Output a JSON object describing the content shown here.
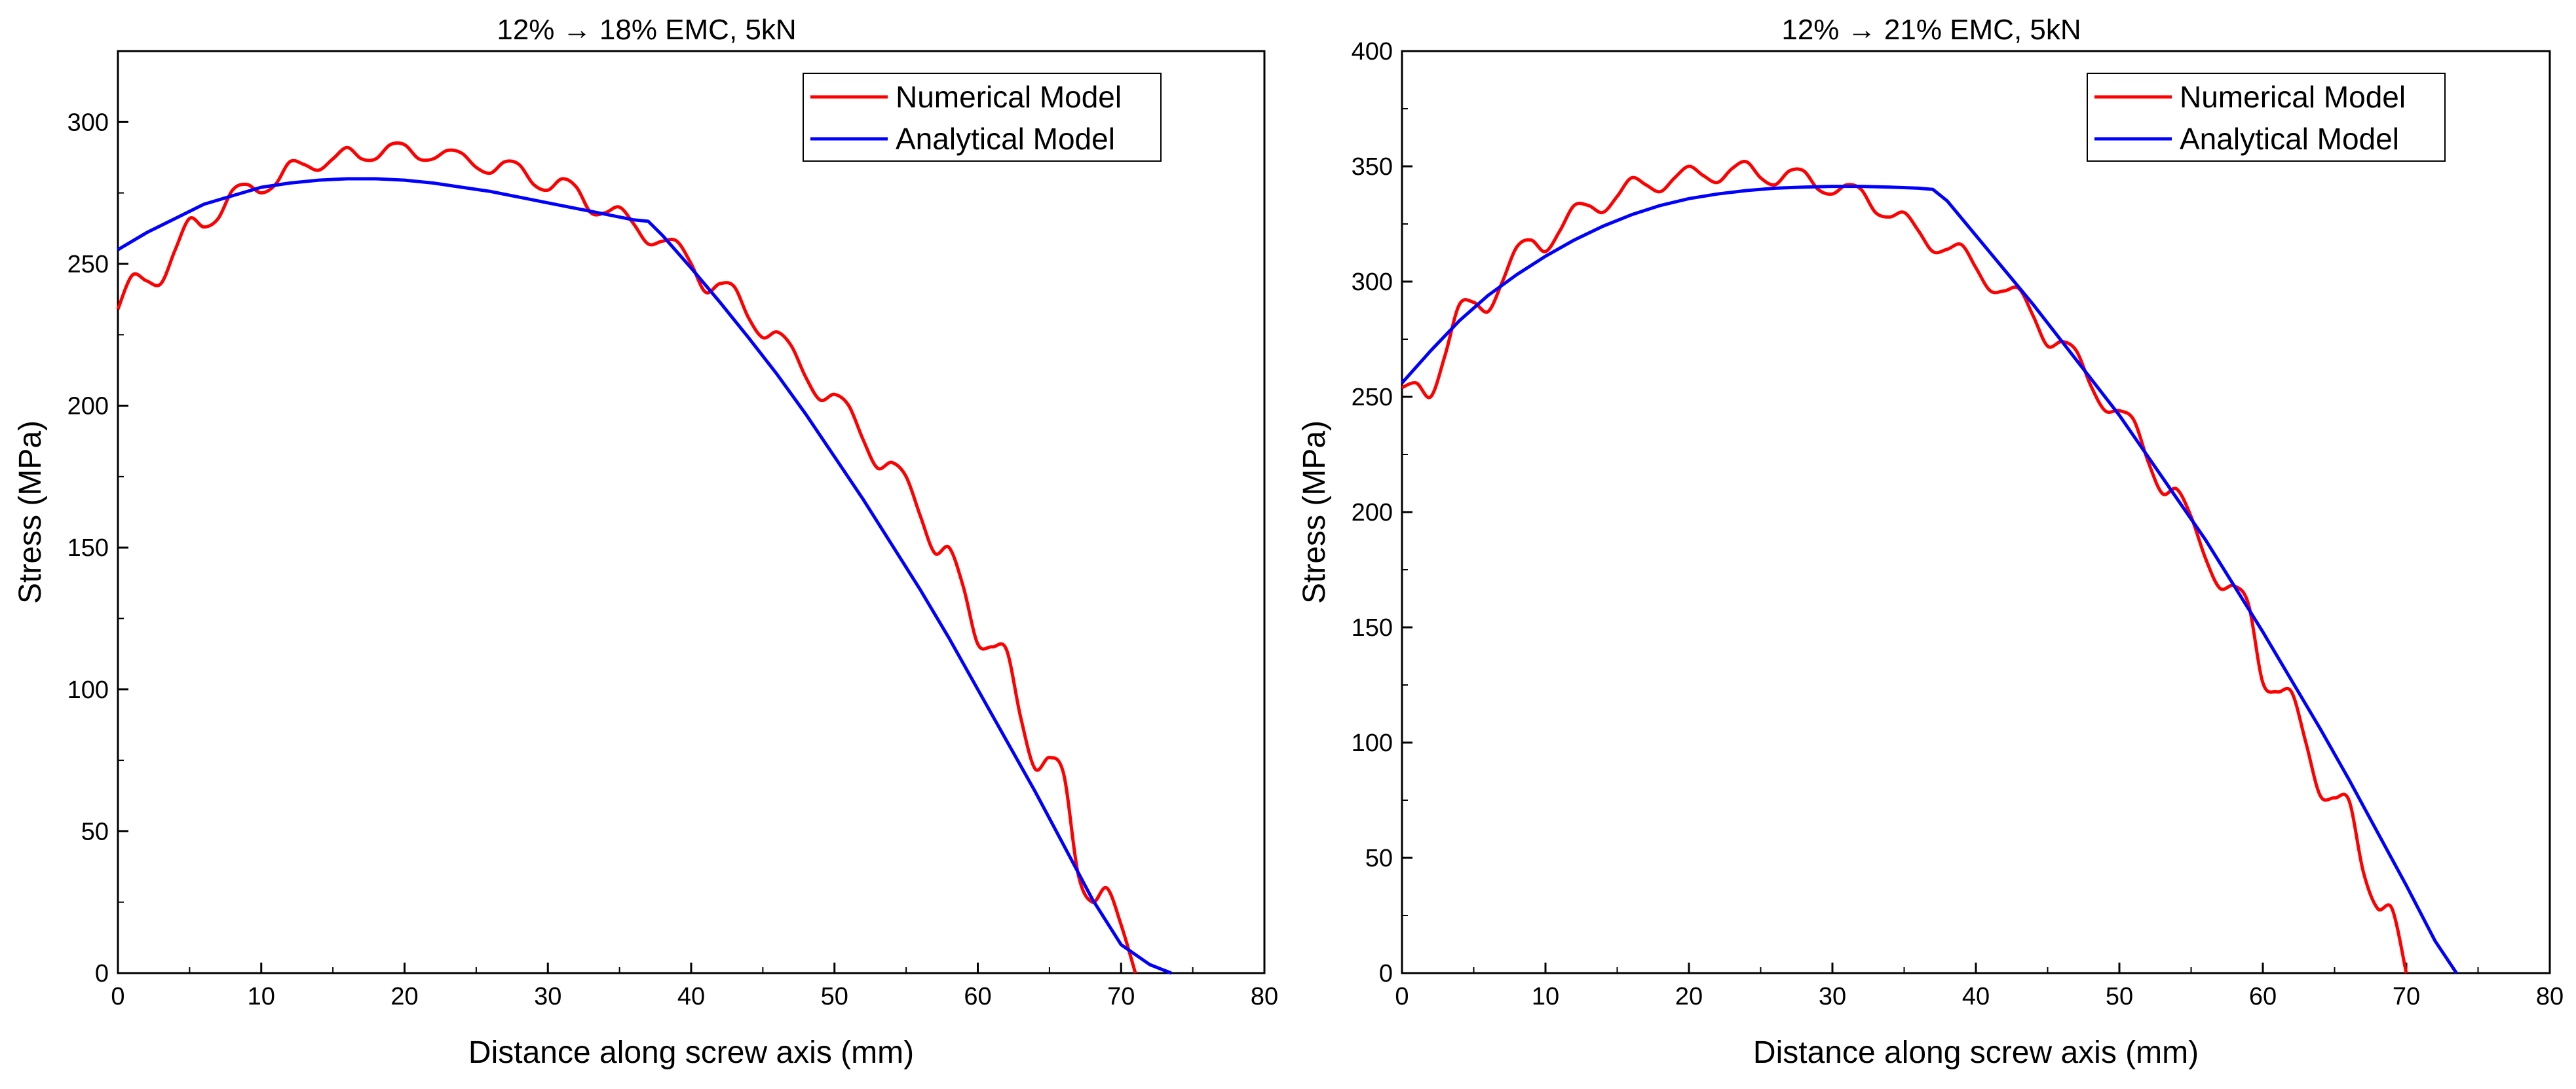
{
  "colors": {
    "numerical": "#ff0000",
    "analytical": "#0000ff",
    "axis": "#000000",
    "background": "#ffffff"
  },
  "chart_data": [
    {
      "type": "line",
      "title": "12% → 18% EMC, 5kN",
      "xlabel": "Distance along screw axis (mm)",
      "ylabel": "Stress (MPa)",
      "xlim": [
        0,
        80
      ],
      "ylim": [
        0,
        325
      ],
      "xticks": [
        0,
        10,
        20,
        30,
        40,
        50,
        60,
        70,
        80
      ],
      "yticks": [
        0,
        50,
        100,
        150,
        200,
        250,
        300
      ],
      "legend": [
        "Numerical Model",
        "Analytical Model"
      ],
      "legend_position": "top-right",
      "series": [
        {
          "name": "Numerical Model",
          "color": "#ff0000",
          "x": [
            0,
            1,
            2,
            3,
            4,
            5,
            6,
            7,
            8,
            9,
            10,
            11,
            12,
            13,
            14,
            15,
            16,
            17,
            18,
            19,
            20,
            21,
            22,
            23,
            24,
            25,
            26,
            27,
            28,
            29,
            30,
            31,
            32,
            33,
            34,
            35,
            36,
            37,
            38,
            39,
            40,
            41,
            42,
            43,
            44,
            45,
            46,
            47,
            48,
            49,
            50,
            51,
            52,
            53,
            54,
            55,
            56,
            57,
            58,
            59,
            60,
            61,
            62,
            63,
            64,
            65,
            66,
            67,
            68,
            69,
            70,
            71
          ],
          "y": [
            234,
            246,
            244,
            243,
            255,
            266,
            263,
            266,
            276,
            278,
            275,
            278,
            286,
            285,
            283,
            287,
            291,
            287,
            287,
            292,
            292,
            287,
            287,
            290,
            289,
            284,
            282,
            286,
            285,
            278,
            276,
            280,
            277,
            268,
            268,
            270,
            264,
            257,
            258,
            258,
            250,
            240,
            243,
            242,
            231,
            224,
            226,
            221,
            210,
            202,
            204,
            200,
            188,
            178,
            180,
            175,
            161,
            148,
            150,
            136,
            116,
            115,
            114,
            90,
            72,
            76,
            70,
            35,
            25,
            30,
            17,
            0
          ]
        },
        {
          "name": "Analytical Model",
          "color": "#0000ff",
          "x": [
            0,
            2,
            4,
            6,
            8,
            10,
            12,
            14,
            16,
            18,
            20,
            22,
            24,
            26,
            28,
            30,
            32,
            34,
            36,
            37,
            38,
            40,
            42,
            44,
            46,
            48,
            50,
            52,
            54,
            56,
            58,
            60,
            62,
            64,
            66,
            68,
            70,
            72,
            73.5
          ],
          "y": [
            255,
            261,
            266,
            271,
            274,
            277,
            278.5,
            279.5,
            280,
            280,
            279.5,
            278.5,
            277,
            275.5,
            273.5,
            271.5,
            269.5,
            267.5,
            265.5,
            265,
            260,
            248.5,
            236.5,
            224,
            211,
            197,
            182,
            167,
            151,
            135,
            118,
            100,
            82,
            64,
            45,
            26,
            10,
            3,
            0
          ]
        }
      ]
    },
    {
      "type": "line",
      "title": "12% → 21% EMC, 5kN",
      "xlabel": "Distance along screw axis (mm)",
      "ylabel": "Stress (MPa)",
      "xlim": [
        0,
        80
      ],
      "ylim": [
        0,
        400
      ],
      "xticks": [
        0,
        10,
        20,
        30,
        40,
        50,
        60,
        70,
        80
      ],
      "yticks": [
        0,
        50,
        100,
        150,
        200,
        250,
        300,
        350,
        400
      ],
      "legend": [
        "Numerical Model",
        "Analytical Model"
      ],
      "legend_position": "top-right",
      "series": [
        {
          "name": "Numerical Model",
          "color": "#ff0000",
          "x": [
            0,
            1,
            2,
            3,
            4,
            5,
            6,
            7,
            8,
            9,
            10,
            11,
            12,
            13,
            14,
            15,
            16,
            17,
            18,
            19,
            20,
            21,
            22,
            23,
            24,
            25,
            26,
            27,
            28,
            29,
            30,
            31,
            32,
            33,
            34,
            35,
            36,
            37,
            38,
            39,
            40,
            41,
            42,
            43,
            44,
            45,
            46,
            47,
            48,
            49,
            50,
            51,
            52,
            53,
            54,
            55,
            56,
            57,
            58,
            59,
            60,
            61,
            62,
            63,
            64,
            65,
            66,
            67,
            68,
            69,
            70
          ],
          "y": [
            254,
            256,
            250,
            268,
            290,
            291,
            287,
            300,
            315,
            318,
            313,
            322,
            333,
            333,
            330,
            337,
            345,
            342,
            339,
            345,
            350,
            346,
            343,
            349,
            352,
            345,
            342,
            348,
            348,
            340,
            338,
            342,
            340,
            330,
            328,
            330,
            322,
            313,
            314,
            316,
            306,
            296,
            296,
            297,
            285,
            272,
            274,
            270,
            255,
            244,
            244,
            240,
            222,
            208,
            210,
            198,
            180,
            167,
            168,
            160,
            126,
            122,
            122,
            100,
            77,
            76,
            75,
            44,
            28,
            28,
            0
          ]
        },
        {
          "name": "Analytical Model",
          "color": "#0000ff",
          "x": [
            0,
            2,
            4,
            6,
            8,
            10,
            12,
            14,
            16,
            18,
            20,
            22,
            24,
            26,
            28,
            30,
            32,
            34,
            36,
            37,
            38,
            40,
            42,
            44,
            46,
            48,
            50,
            52,
            54,
            56,
            58,
            60,
            62,
            64,
            66,
            68,
            70,
            72,
            73.5
          ],
          "y": [
            256,
            270,
            283,
            294,
            303,
            311,
            318,
            324,
            329,
            333,
            336,
            338,
            339.5,
            340.5,
            341,
            341.3,
            341.3,
            341,
            340.5,
            340,
            335,
            320,
            305,
            290,
            274,
            258,
            242,
            224,
            206,
            188,
            168,
            148,
            127,
            106,
            84,
            61,
            38,
            14,
            0
          ]
        }
      ]
    }
  ]
}
